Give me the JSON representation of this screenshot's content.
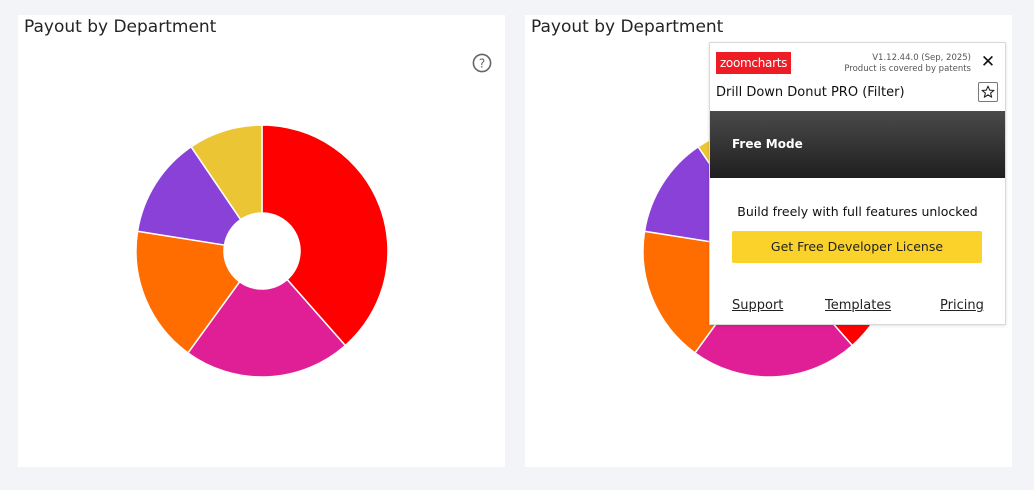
{
  "panels": [
    {
      "title": "Payout by Department"
    },
    {
      "title": "Payout by Department"
    }
  ],
  "chart_data": [
    {
      "type": "pie",
      "title": "Payout by Department",
      "donut": true,
      "categories": [
        "",
        "",
        "",
        "",
        ""
      ],
      "values": [
        38.5,
        21.5,
        17.5,
        13.0,
        9.5
      ],
      "colors": [
        "#ff0000",
        "#e01e96",
        "#ff6c00",
        "#8a41d7",
        "#ecc535"
      ]
    },
    {
      "type": "pie",
      "title": "Payout by Department",
      "donut": true,
      "categories": [
        "",
        "",
        "",
        "",
        ""
      ],
      "values": [
        38.5,
        21.5,
        17.5,
        13.0,
        9.5
      ],
      "colors": [
        "#ff0000",
        "#e01e96",
        "#ff6c00",
        "#8a41d7",
        "#ecc535"
      ]
    }
  ],
  "popup": {
    "logo_text": "zoomcharts",
    "version": "V1.12.44.0 (Sep, 2025)",
    "patent": "Product is covered by patents",
    "product": "Drill Down Donut PRO (Filter)",
    "mode": "Free Mode",
    "tagline": "Build freely with full features unlocked",
    "button": "Get Free Developer License",
    "links": {
      "support": "Support",
      "templates": "Templates",
      "pricing": "Pricing"
    },
    "close_icon": "close-icon",
    "star_icon": "star-icon"
  },
  "help_icon": "help-icon"
}
